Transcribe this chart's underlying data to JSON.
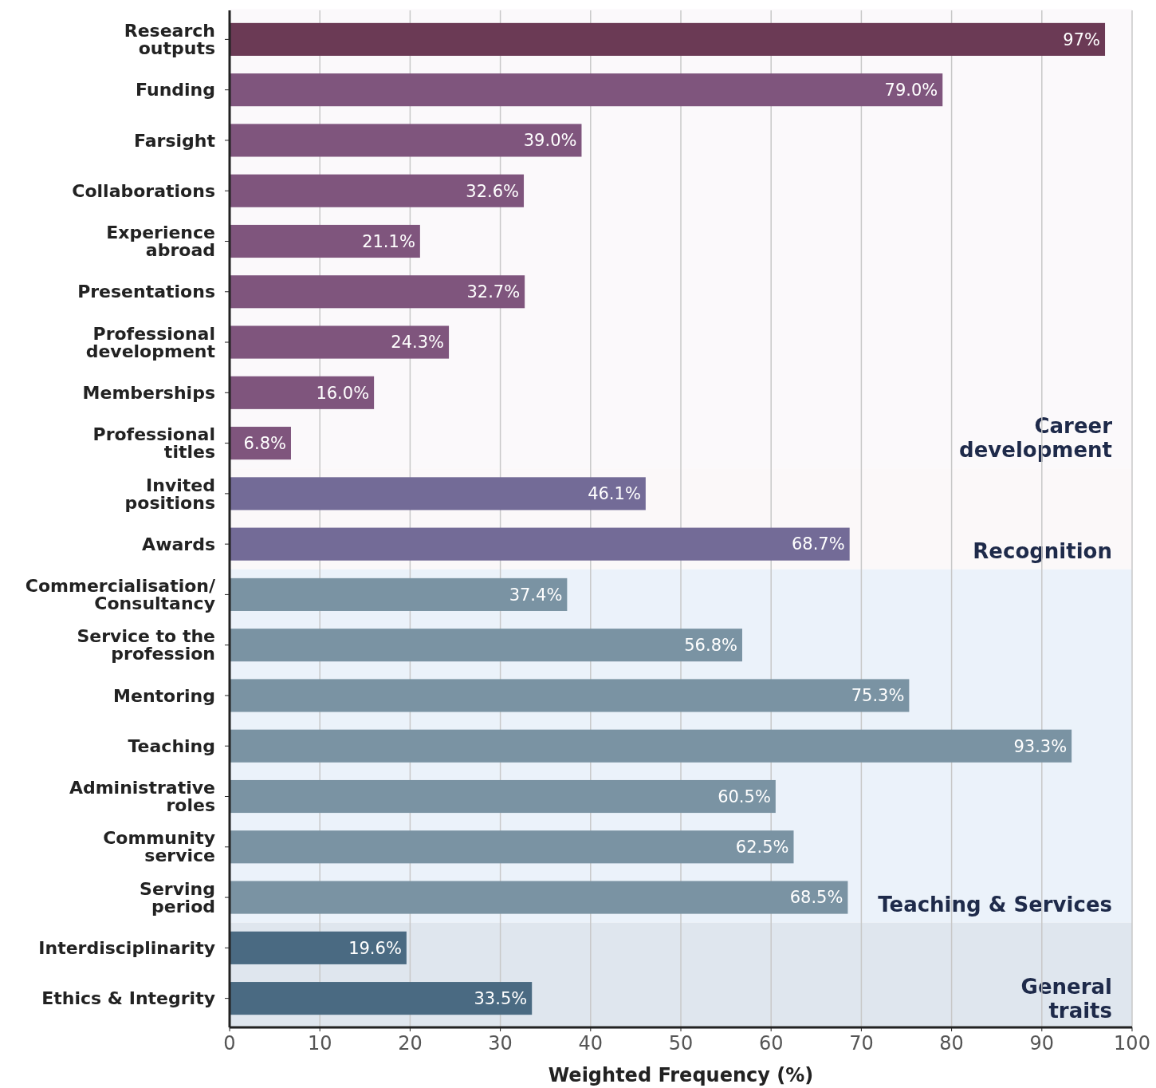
{
  "chart_data": {
    "type": "bar",
    "orientation": "horizontal",
    "xlabel": "Weighted Frequency (%)",
    "categories": [
      "Research\noutputs",
      "Funding",
      "Farsight",
      "Collaborations",
      "Experience\nabroad",
      "Presentations",
      "Professional\ndevelopment",
      "Memberships",
      "Professional\ntitles",
      "Invited\npositions",
      "Awards",
      "Commercialisation/\nConsultancy",
      "Service to the\nprofession",
      "Mentoring",
      "Teaching",
      "Administrative\nroles",
      "Community\nservice",
      "Serving\nperiod",
      "Interdisciplinarity",
      "Ethics & Integrity"
    ],
    "values": [
      97,
      79.0,
      39.0,
      32.6,
      21.1,
      32.7,
      24.3,
      16.0,
      6.8,
      46.1,
      68.7,
      37.4,
      56.8,
      75.3,
      93.3,
      60.5,
      62.5,
      68.5,
      19.6,
      33.5
    ],
    "value_labels": [
      "97%",
      "79.0%",
      "39.0%",
      "32.6%",
      "21.1%",
      "32.7%",
      "24.3%",
      "16.0%",
      "6.8%",
      "46.1%",
      "68.7%",
      "37.4%",
      "56.8%",
      "75.3%",
      "93.3%",
      "60.5%",
      "62.5%",
      "68.5%",
      "19.6%",
      "33.5%"
    ],
    "colors": [
      "#6b3a55",
      "#7f557d",
      "#7f557d",
      "#7f557d",
      "#7f557d",
      "#7f557d",
      "#7f557d",
      "#7f557d",
      "#7f557d",
      "#736b97",
      "#736b97",
      "#7a93a3",
      "#7a93a3",
      "#7a93a3",
      "#7a93a3",
      "#7a93a3",
      "#7a93a3",
      "#7a93a3",
      "#4a6a82",
      "#4a6a82"
    ],
    "xlim": [
      0,
      100
    ],
    "xticks": [
      0,
      10,
      20,
      30,
      40,
      50,
      60,
      70,
      80,
      90,
      100
    ],
    "grid": "x",
    "bands": [
      {
        "axis": "y",
        "from": "Research\noutputs",
        "to": "Professional\ntitles",
        "label": "Career\ndevelopment",
        "color": "#fbf9fb"
      },
      {
        "axis": "y",
        "from": "Invited\npositions",
        "to": "Awards",
        "label": "Recognition",
        "color": "#fbf8f9"
      },
      {
        "axis": "y",
        "from": "Commercialisation/\nConsultancy",
        "to": "Serving\nperiod",
        "label": "Teaching & Services",
        "color": "#ebf2fa"
      },
      {
        "axis": "y",
        "from": "Interdisciplinarity",
        "to": "Ethics & Integrity",
        "label": "General\ntraits",
        "color": "#dfe6ee"
      }
    ]
  }
}
